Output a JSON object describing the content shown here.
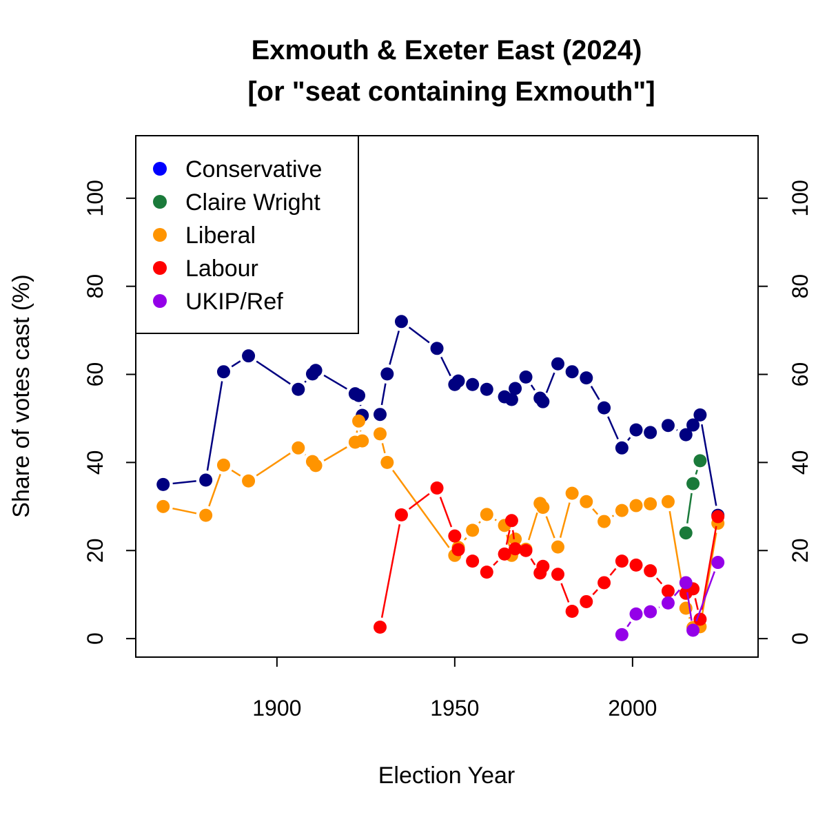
{
  "chart_data": {
    "type": "line",
    "title": "Exmouth & Exeter East (2024)",
    "subtitle": "[or \"seat containing Exmouth\"]",
    "xlabel": "Election Year",
    "ylabel": "Share of votes cast (%)",
    "xlim": [
      1860.3,
      2035.3
    ],
    "ylim": [
      -4.2,
      114.2
    ],
    "xticks": [
      "1900",
      "1950",
      "2000"
    ],
    "yticks": [
      "0",
      "20",
      "40",
      "60",
      "80",
      "100"
    ],
    "legend_position": "top-left",
    "series": [
      {
        "name": "Conservative",
        "color": "#000080",
        "legend_color": "#0000ff",
        "x": [
          1868,
          1880,
          1885,
          1892,
          1906,
          1910,
          1910.9,
          1922,
          1923,
          1924,
          1929,
          1931,
          1935,
          1945,
          1950,
          1951,
          1955,
          1959,
          1964,
          1966,
          1967,
          1970,
          1974,
          1974.8,
          1979,
          1983,
          1987,
          1992,
          1997,
          2001,
          2005,
          2010,
          2015,
          2017,
          2019,
          2024
        ],
        "y": [
          35.0,
          36.0,
          60.6,
          64.2,
          56.6,
          60.1,
          60.9,
          55.6,
          55.2,
          50.7,
          50.9,
          60.1,
          72.0,
          65.9,
          57.7,
          58.5,
          57.7,
          56.6,
          54.9,
          54.3,
          56.8,
          59.4,
          54.6,
          53.8,
          62.4,
          60.6,
          59.2,
          52.4,
          43.3,
          47.4,
          46.8,
          48.4,
          46.3,
          48.5,
          50.8,
          28.0
        ]
      },
      {
        "name": "Claire Wright",
        "color": "#1a7a3a",
        "legend_color": "#1a7a3a",
        "x": [
          2015,
          2017,
          2019
        ],
        "y": [
          24.0,
          35.2,
          40.4
        ]
      },
      {
        "name": "Liberal",
        "color": "#ff9400",
        "legend_color": "#ff9400",
        "x": [
          1868,
          1880,
          1885,
          1892,
          1906,
          1910,
          1910.9,
          1922,
          1923,
          1924,
          1929,
          1931,
          1950,
          1951,
          1955,
          1959,
          1964,
          1966,
          1967,
          1970,
          1974,
          1974.8,
          1979,
          1983,
          1987,
          1992,
          1997,
          2001,
          2005,
          2010,
          2015,
          2017,
          2019,
          2024
        ],
        "y": [
          30.0,
          28.0,
          39.4,
          35.8,
          43.3,
          40.2,
          39.3,
          44.6,
          49.4,
          44.9,
          46.5,
          40.0,
          18.9,
          20.7,
          24.6,
          28.2,
          25.7,
          18.9,
          22.6,
          20.3,
          30.7,
          29.8,
          20.8,
          33.0,
          31.1,
          26.6,
          29.1,
          30.2,
          30.6,
          31.1,
          6.9,
          2.5,
          2.7,
          26.2
        ]
      },
      {
        "name": "Labour",
        "color": "#ff0000",
        "legend_color": "#ff0000",
        "x": [
          1929,
          1935,
          1945,
          1950,
          1951,
          1955,
          1959,
          1964,
          1966,
          1967,
          1970,
          1974,
          1974.8,
          1979,
          1983,
          1987,
          1992,
          1997,
          2001,
          2005,
          2010,
          2015,
          2017,
          2019,
          2024
        ],
        "y": [
          2.6,
          28.1,
          34.2,
          23.3,
          20.2,
          17.6,
          15.1,
          19.2,
          26.8,
          20.4,
          20.0,
          14.9,
          16.4,
          14.6,
          6.2,
          8.4,
          12.7,
          17.6,
          16.7,
          15.4,
          10.8,
          10.3,
          11.3,
          4.4,
          27.7
        ]
      },
      {
        "name": "UKIP/Ref",
        "color": "#9400e8",
        "legend_color": "#9400e8",
        "x": [
          1997,
          2001,
          2005,
          2010,
          2015,
          2017,
          2024
        ],
        "y": [
          0.9,
          5.6,
          6.1,
          8.1,
          12.7,
          1.9,
          17.3
        ]
      }
    ]
  }
}
